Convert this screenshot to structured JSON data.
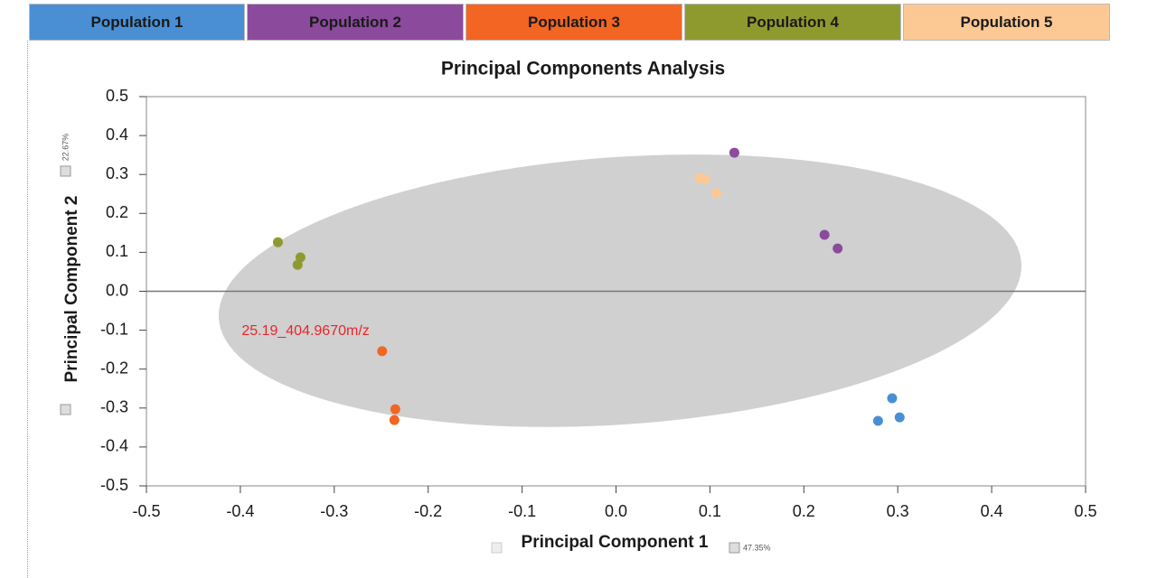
{
  "chart_data": {
    "type": "scatter",
    "title": "Principal Components Analysis",
    "xlabel": "Principal Component 1",
    "ylabel": "Principal Component 2",
    "xlabel_note": "47.35%",
    "ylabel_note": "22.67%",
    "annotation": "25.19_404.9670m/z",
    "xlim": [
      -0.5,
      0.5
    ],
    "ylim": [
      -0.5,
      0.5
    ],
    "xticks": [
      -0.5,
      -0.4,
      -0.3,
      -0.2,
      -0.1,
      {
        "value": 0,
        "label": "0.0"
      },
      0.1,
      0.2,
      0.3,
      0.4,
      0.5
    ],
    "yticks": [
      -0.5,
      -0.4,
      -0.3,
      -0.2,
      -0.1,
      {
        "value": 0,
        "label": "0.0"
      },
      0.1,
      0.2,
      0.3,
      0.4,
      0.5
    ],
    "series": [
      {
        "name": "Population 1",
        "color": "#4a8fd4",
        "x": [
          0.294,
          0.279,
          0.302
        ],
        "values": [
          -0.275,
          -0.333,
          -0.324
        ]
      },
      {
        "name": "Population 2",
        "color": "#8b4a9c",
        "x": [
          0.126,
          0.222,
          0.236
        ],
        "values": [
          0.356,
          0.145,
          0.11
        ]
      },
      {
        "name": "Population 3",
        "color": "#f26522",
        "x": [
          -0.249,
          -0.235,
          -0.236
        ],
        "values": [
          -0.154,
          -0.303,
          -0.331
        ]
      },
      {
        "name": "Population 4",
        "color": "#8f9a2e",
        "x": [
          -0.36,
          -0.336,
          -0.339
        ],
        "values": [
          0.126,
          0.087,
          0.068
        ]
      },
      {
        "name": "Population 5",
        "color": "#fcc893",
        "x": [
          0.089,
          0.095,
          0.107
        ],
        "values": [
          0.291,
          0.287,
          0.252
        ]
      }
    ]
  }
}
